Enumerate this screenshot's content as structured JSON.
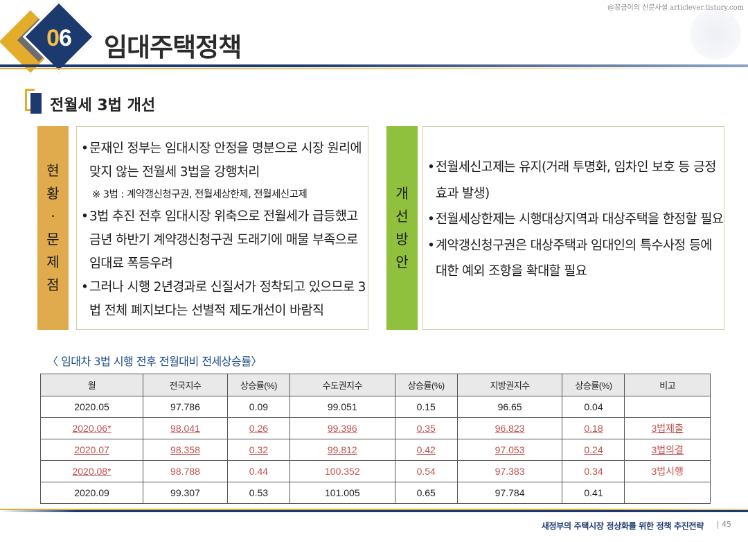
{
  "watermark": "@꽁금이의 신문사설 articlever.tistory.com",
  "header": {
    "number_part1": "0",
    "number_part2": "6",
    "title": "임대주택정책"
  },
  "section": {
    "title": "전월세 3법 개선"
  },
  "left_panel": {
    "label_chars": [
      "현",
      "황",
      "·",
      "문",
      "제",
      "점"
    ],
    "bullets": [
      {
        "text": "문재인 정부는 임대시장 안정을 명분으로 시장 원리에 맞지 않는 전월세 3법을 강행처리",
        "note": "※ 3법 : 계약갱신청구권, 전월세상한제, 전월세신고제"
      },
      {
        "text": "3법 추진 전후 임대시장 위축으로 전월세가 급등했고 금년 하반기 계약갱신청구권 도래기에 매물 부족으로 임대료 폭등우려"
      },
      {
        "text": "그러나 시행 2년경과로 신질서가 정착되고 있으므로 3법 전체 폐지보다는 선별적 제도개선이 바람직"
      }
    ]
  },
  "right_panel": {
    "label_chars": [
      "개",
      "선",
      "방",
      "안"
    ],
    "bullets": [
      {
        "text": "전월세신고제는 유지(거래 투명화, 임차인 보호 등 긍정효과 발생)"
      },
      {
        "text": "전월세상한제는 시행대상지역과 대상주택을 한정할 필요"
      },
      {
        "text": "계약갱신청구권은 대상주택과 임대인의 특수사정 등에 대한 예외 조항을 확대할 필요"
      }
    ]
  },
  "table": {
    "caption": "〈 임대차 3법 시행 전후 전월대비 전세상승률〉",
    "headers": [
      "월",
      "전국지수",
      "상승률(%)",
      "수도권지수",
      "상승률(%)",
      "지방권지수",
      "상승률(%)",
      "비고"
    ],
    "rows": [
      [
        "2020.05",
        "97.786",
        "0.09",
        "99.051",
        "0.15",
        "96.65",
        "0.04",
        ""
      ],
      [
        "2020.06*",
        "98.041",
        "0.26",
        "99.396",
        "0.35",
        "96.823",
        "0.18",
        "3법제출"
      ],
      [
        "2020.07",
        "98.358",
        "0.32",
        "99.812",
        "0.42",
        "97.053",
        "0.24",
        "3법의결"
      ],
      [
        "2020.08*",
        "98.788",
        "0.44",
        "100.352",
        "0.54",
        "97.383",
        "0.34",
        "3법시행"
      ],
      [
        "2020.09",
        "99.307",
        "0.53",
        "101.005",
        "0.65",
        "97.784",
        "0.41",
        ""
      ]
    ]
  },
  "footer": {
    "text": "새정부의 주택시장 정상화를 위한 정책 추진전략",
    "page": "| 45"
  },
  "colors": {
    "navy": "#1d3a6e",
    "gold": "#e3ac2b",
    "green": "#90c13e",
    "highlight_red": "#c0504d"
  }
}
